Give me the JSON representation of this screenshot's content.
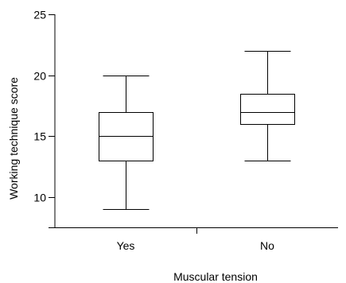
{
  "chart_data": {
    "type": "box",
    "xlabel": "Muscular tension",
    "ylabel": "Working technique score",
    "ylim": [
      7.5,
      25
    ],
    "yticks": [
      10,
      15,
      20,
      25
    ],
    "grid": false,
    "categories": [
      "Yes",
      "No"
    ],
    "boxes": [
      {
        "category": "Yes",
        "min": 9,
        "q1": 13,
        "median": 15,
        "q3": 17,
        "max": 20
      },
      {
        "category": "No",
        "min": 13,
        "q1": 16,
        "median": 17,
        "q3": 18.5,
        "max": 22
      }
    ],
    "colors": {
      "stroke": "#000000",
      "background": "#ffffff"
    }
  }
}
